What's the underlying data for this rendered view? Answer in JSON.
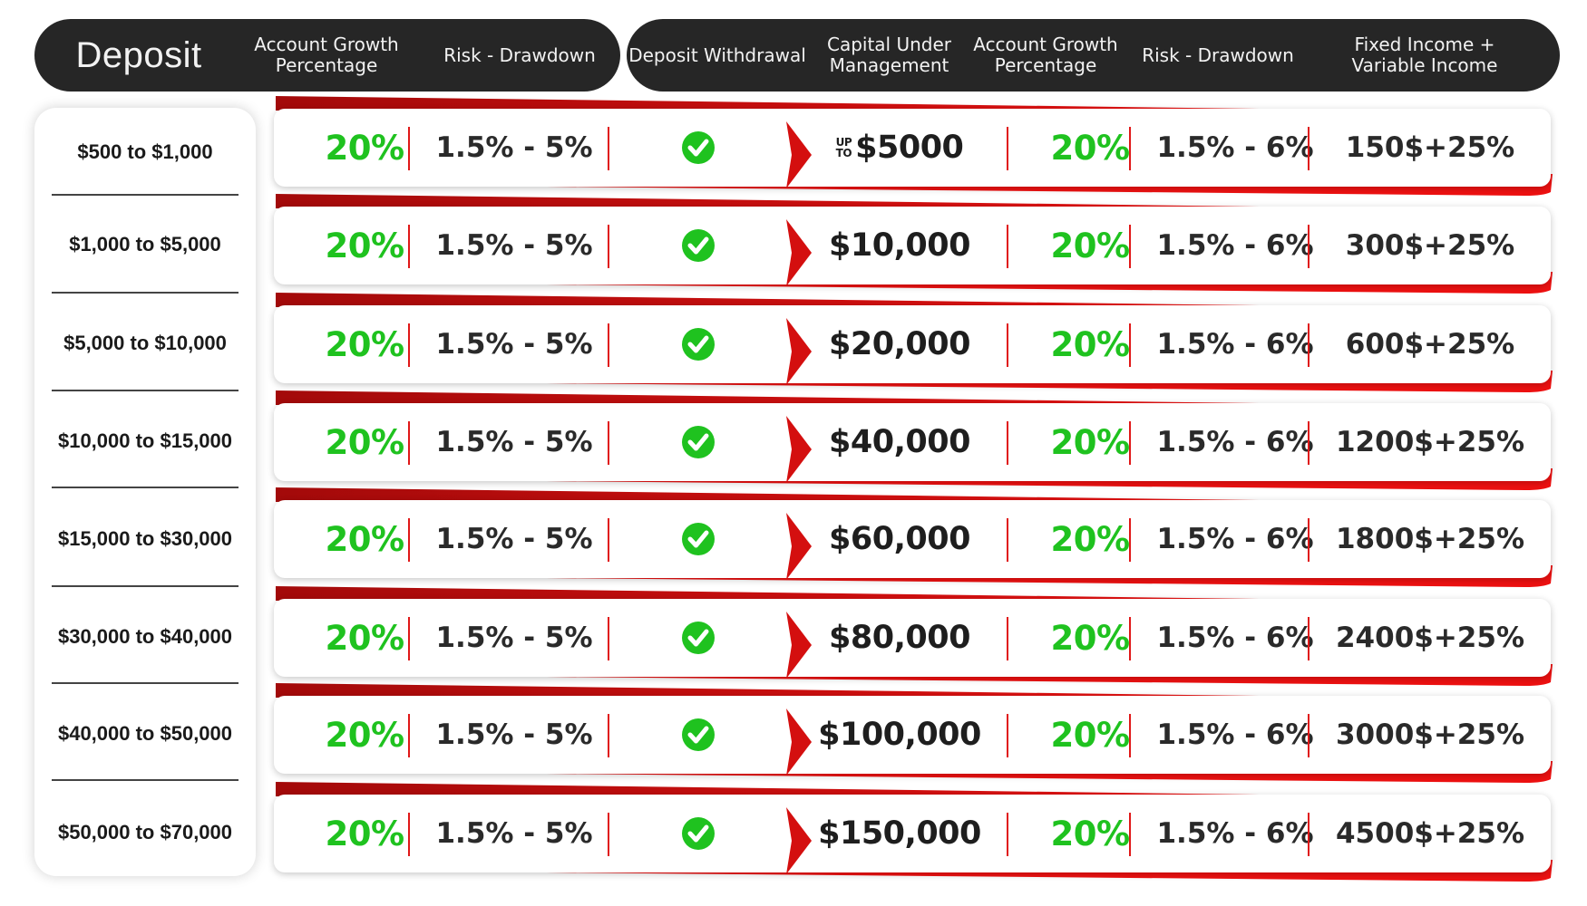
{
  "header": {
    "deposit": "Deposit",
    "growth_left": "Account Growth\nPercentage",
    "risk_left": "Risk - Drawdown",
    "withdrawal": "Deposit Withdrawal",
    "capital": "Capital Under\nManagement",
    "growth_right": "Account Growth\nPercentage",
    "risk_right": "Risk - Drawdown",
    "income": "Fixed Income +\nVariable Income"
  },
  "colors": {
    "accent_red": "#d40f0f",
    "green": "#1fc21f",
    "dark": "#262626"
  },
  "rows": [
    {
      "deposit": "$500 to $1,000",
      "growth_left": "20%",
      "risk_left": "1.5% - 5%",
      "withdrawal": "check-icon",
      "capital_prefix_top": "UP",
      "capital_prefix_bottom": "TO",
      "capital": "$5000",
      "growth_right": "20%",
      "risk_right": "1.5% - 6%",
      "income": "150$+25%"
    },
    {
      "deposit": "$1,000 to $5,000",
      "growth_left": "20%",
      "risk_left": "1.5% - 5%",
      "withdrawal": "check-icon",
      "capital": "$10,000",
      "growth_right": "20%",
      "risk_right": "1.5% - 6%",
      "income": "300$+25%"
    },
    {
      "deposit": "$5,000 to $10,000",
      "growth_left": "20%",
      "risk_left": "1.5% - 5%",
      "withdrawal": "check-icon",
      "capital": "$20,000",
      "growth_right": "20%",
      "risk_right": "1.5% - 6%",
      "income": "600$+25%"
    },
    {
      "deposit": "$10,000 to $15,000",
      "growth_left": "20%",
      "risk_left": "1.5% - 5%",
      "withdrawal": "check-icon",
      "capital": "$40,000",
      "growth_right": "20%",
      "risk_right": "1.5% - 6%",
      "income": "1200$+25%"
    },
    {
      "deposit": "$15,000 to $30,000",
      "growth_left": "20%",
      "risk_left": "1.5% - 5%",
      "withdrawal": "check-icon",
      "capital": "$60,000",
      "growth_right": "20%",
      "risk_right": "1.5% - 6%",
      "income": "1800$+25%"
    },
    {
      "deposit": "$30,000 to $40,000",
      "growth_left": "20%",
      "risk_left": "1.5% - 5%",
      "withdrawal": "check-icon",
      "capital": "$80,000",
      "growth_right": "20%",
      "risk_right": "1.5% - 6%",
      "income": "2400$+25%"
    },
    {
      "deposit": "$40,000 to $50,000",
      "growth_left": "20%",
      "risk_left": "1.5% - 5%",
      "withdrawal": "check-icon",
      "capital": "$100,000",
      "growth_right": "20%",
      "risk_right": "1.5% - 6%",
      "income": "3000$+25%"
    },
    {
      "deposit": "$50,000 to $70,000",
      "growth_left": "20%",
      "risk_left": "1.5% - 5%",
      "withdrawal": "check-icon",
      "capital": "$150,000",
      "growth_right": "20%",
      "risk_right": "1.5% - 6%",
      "income": "4500$+25%"
    }
  ]
}
